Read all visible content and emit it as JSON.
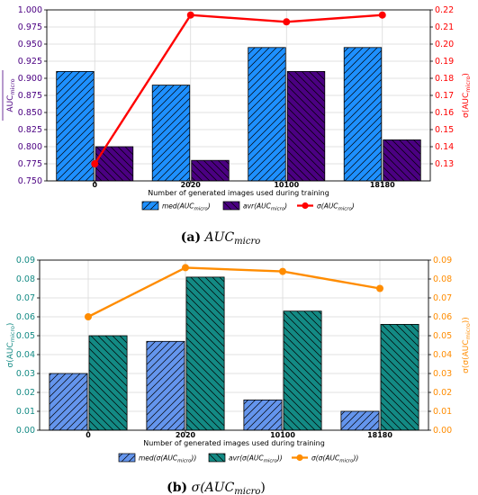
{
  "chart_data": [
    {
      "type": "bar",
      "categories": [
        "0",
        "2020",
        "10100",
        "18180"
      ],
      "xlabel": "Number of generated images used during training",
      "ylabel_left": "AUC_micro (overline)",
      "ylabel_right": "σ(AUC_micro overline)",
      "ylim": [
        0.75,
        1.0
      ],
      "ylim_right": [
        0.12,
        0.22
      ],
      "yticks_left": [
        "0.750",
        "0.775",
        "0.800",
        "0.825",
        "0.850",
        "0.875",
        "0.900",
        "0.925",
        "0.950",
        "0.975",
        "1.000"
      ],
      "yticks_right": [
        "0.13",
        "0.14",
        "0.15",
        "0.16",
        "0.17",
        "0.18",
        "0.19",
        "0.20",
        "0.21",
        "0.22"
      ],
      "left_color": "#2a2a7a",
      "right_color": "#e31a1c",
      "grid": true,
      "legend_position": "bottom-center",
      "series": [
        {
          "name": "med(AUC_micro)",
          "kind": "bar",
          "color": "#1e90ff",
          "hatch": "//",
          "values": [
            0.91,
            0.89,
            0.945,
            0.945
          ]
        },
        {
          "name": "avr(AUC_micro)",
          "kind": "bar",
          "color": "#4b0082",
          "hatch": "\\\\",
          "values": [
            0.8,
            0.78,
            0.91,
            0.81
          ]
        },
        {
          "name": "σ(AUC_micro)",
          "kind": "line",
          "axis": "right",
          "color": "#ff0000",
          "values": [
            0.13,
            0.217,
            0.213,
            0.217
          ]
        }
      ],
      "legend": {
        "med": {
          "prefix": "med(",
          "main": "AUC",
          "sub": "micro",
          "suffix": ")"
        },
        "avr": {
          "prefix": "avr(",
          "main": "AUC",
          "sub": "micro",
          "suffix": ")"
        },
        "sig": {
          "prefix": "σ(",
          "main": "AUC",
          "sub": "micro",
          "suffix": ")"
        }
      },
      "ylab_left": {
        "main": "AUC",
        "sub": "micro"
      },
      "ylab_right": {
        "prefix": "σ(",
        "main": "AUC",
        "sub": "micro",
        "suffix": ")"
      },
      "caption": {
        "label": "(a)",
        "main": "AUC",
        "sub": "micro"
      }
    },
    {
      "type": "bar",
      "categories": [
        "0",
        "2020",
        "10100",
        "18180"
      ],
      "xlabel": "Number of generated images used during training",
      "ylabel_left": "σ(AUC_micro)",
      "ylabel_right": "σ(σ(AUC_micro))",
      "ylim": [
        0.0,
        0.09
      ],
      "ylim_right": [
        0.0,
        0.09
      ],
      "yticks_left": [
        "0.00",
        "0.01",
        "0.02",
        "0.03",
        "0.04",
        "0.05",
        "0.06",
        "0.07",
        "0.08",
        "0.09"
      ],
      "yticks_right": [
        "0.00",
        "0.01",
        "0.02",
        "0.03",
        "0.04",
        "0.05",
        "0.06",
        "0.07",
        "0.08",
        "0.09"
      ],
      "left_color": "#138a84",
      "right_color": "#ff8c00",
      "grid": true,
      "legend_position": "bottom-center",
      "series": [
        {
          "name": "med(σ(AUC_micro))",
          "kind": "bar",
          "color": "#6495ed",
          "hatch": "//",
          "values": [
            0.03,
            0.047,
            0.016,
            0.01
          ]
        },
        {
          "name": "avr(σ(AUC_micro))",
          "kind": "bar",
          "color": "#138a84",
          "hatch": "\\\\",
          "values": [
            0.05,
            0.081,
            0.063,
            0.056
          ]
        },
        {
          "name": "σ(σ(AUC_micro))",
          "kind": "line",
          "axis": "right",
          "color": "#ff8c00",
          "values": [
            0.06,
            0.086,
            0.084,
            0.075
          ]
        }
      ],
      "legend": {
        "med": {
          "prefix": "med(σ(",
          "main": "AUC",
          "sub": "micro",
          "suffix": "))"
        },
        "avr": {
          "prefix": "avr(σ(",
          "main": "AUC",
          "sub": "micro",
          "suffix": "))"
        },
        "sig": {
          "prefix": "σ(σ(",
          "main": "AUC",
          "sub": "micro",
          "suffix": "))"
        }
      },
      "ylab_left": {
        "prefix": "σ(",
        "main": "AUC",
        "sub": "micro",
        "suffix": ")"
      },
      "ylab_right": {
        "prefix": "σ(σ(",
        "main": "AUC",
        "sub": "micro",
        "suffix": "))"
      },
      "caption": {
        "label": "(b)",
        "main": "σ(AUC",
        "sub": "micro",
        "suffix": ")"
      }
    }
  ]
}
